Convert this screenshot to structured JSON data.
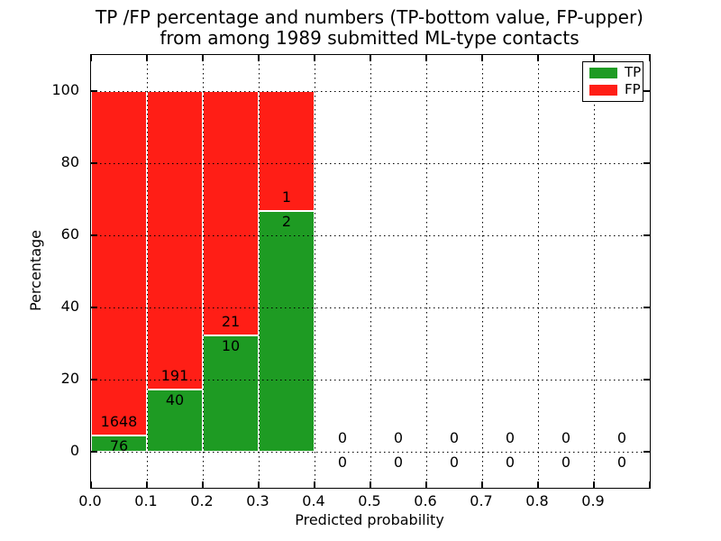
{
  "chart_data": {
    "type": "bar",
    "stacked": true,
    "title_lines": [
      "TP /FP percentage and numbers (TP-bottom value, FP-upper)",
      "from among 1989 submitted ML-type contacts"
    ],
    "xlabel": "Predicted probability",
    "ylabel": "Percentage",
    "xlim": [
      0.0,
      1.0
    ],
    "ylim": [
      -10,
      110
    ],
    "yticks": [
      0,
      20,
      40,
      60,
      80,
      100
    ],
    "xticks": [
      "0.0",
      "0.1",
      "0.2",
      "0.3",
      "0.4",
      "0.5",
      "0.6",
      "0.7",
      "0.8",
      "0.9"
    ],
    "grid": "dotted, both axes, drawn over bars",
    "legend": {
      "position": "upper right",
      "entries": [
        {
          "label": "TP",
          "color": "#1e9b23"
        },
        {
          "label": "FP",
          "color": "#ff1e16"
        }
      ]
    },
    "colors": {
      "tp": "#1e9b23",
      "fp": "#ff1e16",
      "bar_edge": "#ffffff",
      "grid": "#000000"
    },
    "bins": [
      {
        "range": [
          0.0,
          0.1
        ],
        "tp": 76,
        "fp": 1648
      },
      {
        "range": [
          0.1,
          0.2
        ],
        "tp": 40,
        "fp": 191
      },
      {
        "range": [
          0.2,
          0.3
        ],
        "tp": 10,
        "fp": 21
      },
      {
        "range": [
          0.3,
          0.4
        ],
        "tp": 2,
        "fp": 1
      },
      {
        "range": [
          0.4,
          0.5
        ],
        "tp": 0,
        "fp": 0
      },
      {
        "range": [
          0.5,
          0.6
        ],
        "tp": 0,
        "fp": 0
      },
      {
        "range": [
          0.6,
          0.7
        ],
        "tp": 0,
        "fp": 0
      },
      {
        "range": [
          0.7,
          0.8
        ],
        "tp": 0,
        "fp": 0
      },
      {
        "range": [
          0.8,
          0.9
        ],
        "tp": 0,
        "fp": 0
      },
      {
        "range": [
          0.9,
          1.0
        ],
        "tp": 0,
        "fp": 0
      }
    ]
  }
}
